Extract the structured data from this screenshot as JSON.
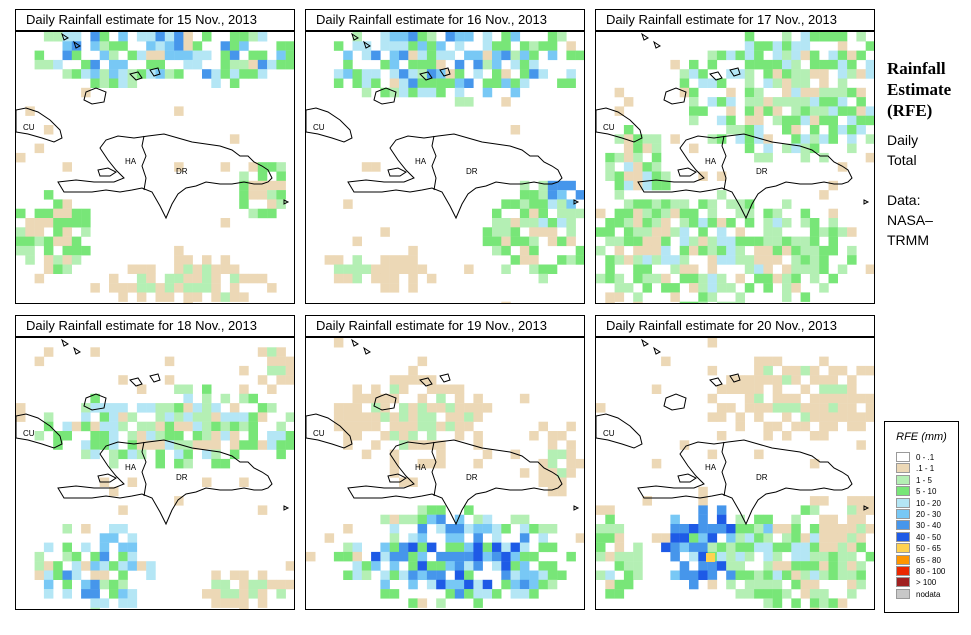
{
  "side": {
    "title_lines": [
      "Rainfall",
      "Estimate",
      "(RFE)"
    ],
    "period_lines": [
      "Daily",
      "Total"
    ],
    "source_lines": [
      "Data:",
      "NASA–",
      "TRMM"
    ]
  },
  "map_labels": {
    "cuba": "CU",
    "haiti": "HA",
    "dominican_republic": "DR"
  },
  "legend": {
    "title": "RFE (mm)",
    "entries": [
      {
        "label": "0 - .1",
        "color": "#ffffff"
      },
      {
        "label": ".1 - 1",
        "color": "#ecd8b6"
      },
      {
        "label": "1 - 5",
        "color": "#b4efb4"
      },
      {
        "label": "5 - 10",
        "color": "#78e678"
      },
      {
        "label": "10 - 20",
        "color": "#b4e6f5"
      },
      {
        "label": "20 - 30",
        "color": "#78c8f5"
      },
      {
        "label": "30 - 40",
        "color": "#4696eb"
      },
      {
        "label": "40 - 50",
        "color": "#1e5ae6"
      },
      {
        "label": "50 - 65",
        "color": "#ffd250"
      },
      {
        "label": "65 - 80",
        "color": "#ff9600"
      },
      {
        "label": "80 - 100",
        "color": "#eb2800"
      },
      {
        "label": "> 100",
        "color": "#a02020"
      },
      {
        "label": "nodata",
        "color": "#c8c8c8"
      }
    ]
  },
  "panels": [
    {
      "title": "Daily Rainfall estimate for  15 Nov., 2013"
    },
    {
      "title": "Daily Rainfall estimate for  16 Nov., 2013"
    },
    {
      "title": "Daily Rainfall estimate for  17 Nov., 2013"
    },
    {
      "title": "Daily Rainfall estimate for  18 Nov., 2013"
    },
    {
      "title": "Daily Rainfall estimate for  19 Nov., 2013"
    },
    {
      "title": "Daily Rainfall estimate for  20 Nov., 2013"
    }
  ]
}
